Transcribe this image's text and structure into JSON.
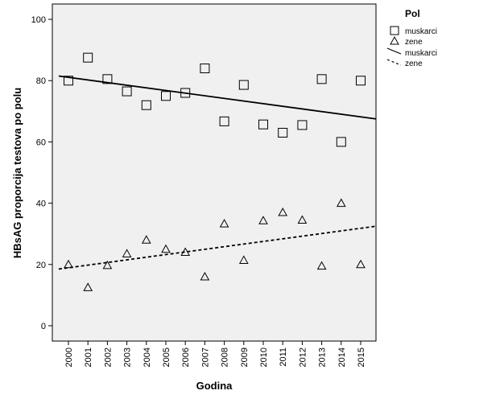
{
  "chart_data": {
    "type": "scatter",
    "xlabel": "Godina",
    "ylabel": "HBsAG proporcija testova po polu",
    "ylim": [
      -5,
      105
    ],
    "yticks": [
      0,
      20,
      40,
      60,
      80,
      100
    ],
    "categories": [
      "2000",
      "2001",
      "2002",
      "2003",
      "2004",
      "2005",
      "2006",
      "2007",
      "2008",
      "2009",
      "2010",
      "2011",
      "2012",
      "2013",
      "2014",
      "2015"
    ],
    "legend": {
      "title": "Pol",
      "placement": "right",
      "entries": [
        {
          "label": "muskarci",
          "symbol": "square"
        },
        {
          "label": "zene",
          "symbol": "triangle"
        },
        {
          "label": "muskarci",
          "symbol": "solid-line"
        },
        {
          "label": "zene",
          "symbol": "dashed-line"
        }
      ]
    },
    "series": [
      {
        "name": "muskarci",
        "marker": "square",
        "values": [
          80,
          87.5,
          80.5,
          76.5,
          72,
          75,
          76,
          84,
          66.7,
          78.6,
          65.7,
          63,
          65.5,
          80.5,
          60,
          80
        ]
      },
      {
        "name": "zene",
        "marker": "triangle",
        "values": [
          20,
          12.5,
          19.7,
          23.5,
          28,
          25,
          24,
          16,
          33.3,
          21.4,
          34.3,
          37,
          34.5,
          19.5,
          40,
          20
        ]
      }
    ],
    "fit_lines": [
      {
        "name": "muskarci",
        "style": "solid",
        "x_start": -0.5,
        "y_start": 81.5,
        "x_end": 15.8,
        "y_end": 67.5
      },
      {
        "name": "zene",
        "style": "dashed",
        "x_start": -0.5,
        "y_start": 18.5,
        "x_end": 15.8,
        "y_end": 32.5
      }
    ],
    "grid": false,
    "plot_background": "#f0f0f0"
  }
}
